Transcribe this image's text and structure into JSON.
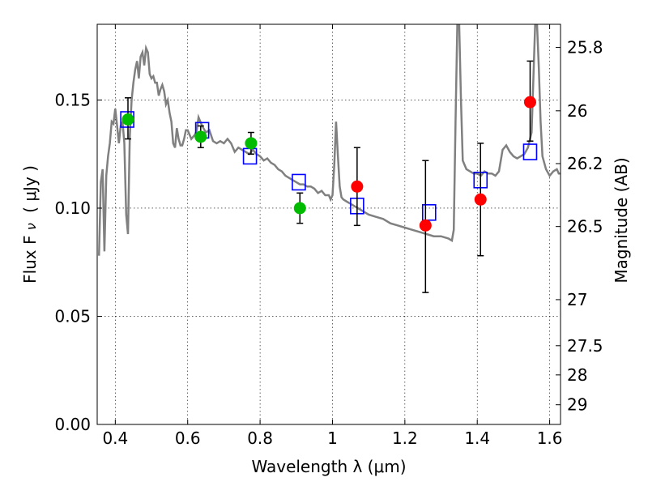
{
  "chart_data": {
    "type": "scatter",
    "xlabel": "Wavelength  λ (μm)",
    "ylabel_main": "Flux  F",
    "ylabel_sub": "ν",
    "ylabel_unit": "( μJy )",
    "y2label": "Magnitude (AB)",
    "xlim": [
      0.35,
      1.63
    ],
    "ylim": [
      0.0,
      0.185
    ],
    "grid": true,
    "x_ticks": [
      0.4,
      0.6,
      0.8,
      1.0,
      1.2,
      1.4,
      1.6
    ],
    "x_tick_labels": [
      "0.4",
      "0.6",
      "0.8",
      "1",
      "1.2",
      "1.4",
      "1.6"
    ],
    "y_ticks": [
      0.0,
      0.05,
      0.1,
      0.15
    ],
    "y_tick_labels": [
      "0.00",
      "0.05",
      "0.10",
      "0.15"
    ],
    "mag_ticks": [
      {
        "label": "25.8",
        "flux": 0.1743
      },
      {
        "label": "26",
        "flux": 0.145
      },
      {
        "label": "26.2",
        "flux": 0.1206
      },
      {
        "label": "26.5",
        "flux": 0.0915
      },
      {
        "label": "27",
        "flux": 0.0577
      },
      {
        "label": "27.5",
        "flux": 0.0364
      },
      {
        "label": "28",
        "flux": 0.0229
      },
      {
        "label": "29",
        "flux": 0.0091
      }
    ],
    "colors": {
      "sed": "#808080",
      "green_points": "#00bb00",
      "red_points": "#ff0000",
      "model_squares": "#0000ff",
      "errorbars": "#000000"
    },
    "sed_curve": [
      [
        0.355,
        0.078
      ],
      [
        0.36,
        0.112
      ],
      [
        0.365,
        0.118
      ],
      [
        0.37,
        0.08
      ],
      [
        0.375,
        0.115
      ],
      [
        0.38,
        0.124
      ],
      [
        0.385,
        0.13
      ],
      [
        0.39,
        0.14
      ],
      [
        0.395,
        0.139
      ],
      [
        0.4,
        0.146
      ],
      [
        0.405,
        0.138
      ],
      [
        0.41,
        0.13
      ],
      [
        0.415,
        0.138
      ],
      [
        0.42,
        0.14
      ],
      [
        0.425,
        0.13
      ],
      [
        0.43,
        0.097
      ],
      [
        0.435,
        0.088
      ],
      [
        0.44,
        0.133
      ],
      [
        0.445,
        0.15
      ],
      [
        0.45,
        0.158
      ],
      [
        0.455,
        0.164
      ],
      [
        0.46,
        0.168
      ],
      [
        0.465,
        0.16
      ],
      [
        0.47,
        0.17
      ],
      [
        0.475,
        0.172
      ],
      [
        0.48,
        0.166
      ],
      [
        0.485,
        0.174
      ],
      [
        0.49,
        0.172
      ],
      [
        0.495,
        0.162
      ],
      [
        0.5,
        0.16
      ],
      [
        0.505,
        0.161
      ],
      [
        0.51,
        0.158
      ],
      [
        0.515,
        0.158
      ],
      [
        0.52,
        0.152
      ],
      [
        0.525,
        0.155
      ],
      [
        0.53,
        0.157
      ],
      [
        0.535,
        0.154
      ],
      [
        0.54,
        0.148
      ],
      [
        0.545,
        0.15
      ],
      [
        0.55,
        0.144
      ],
      [
        0.555,
        0.14
      ],
      [
        0.56,
        0.13
      ],
      [
        0.565,
        0.128
      ],
      [
        0.57,
        0.137
      ],
      [
        0.575,
        0.132
      ],
      [
        0.58,
        0.129
      ],
      [
        0.585,
        0.129
      ],
      [
        0.59,
        0.132
      ],
      [
        0.595,
        0.136
      ],
      [
        0.6,
        0.136
      ],
      [
        0.605,
        0.134
      ],
      [
        0.61,
        0.132
      ],
      [
        0.615,
        0.133
      ],
      [
        0.62,
        0.134
      ],
      [
        0.625,
        0.136
      ],
      [
        0.63,
        0.142
      ],
      [
        0.64,
        0.138
      ],
      [
        0.65,
        0.135
      ],
      [
        0.66,
        0.136
      ],
      [
        0.67,
        0.131
      ],
      [
        0.68,
        0.13
      ],
      [
        0.69,
        0.131
      ],
      [
        0.7,
        0.13
      ],
      [
        0.71,
        0.132
      ],
      [
        0.72,
        0.13
      ],
      [
        0.73,
        0.126
      ],
      [
        0.74,
        0.128
      ],
      [
        0.75,
        0.127
      ],
      [
        0.76,
        0.126
      ],
      [
        0.77,
        0.125
      ],
      [
        0.78,
        0.127
      ],
      [
        0.79,
        0.125
      ],
      [
        0.8,
        0.124
      ],
      [
        0.81,
        0.122
      ],
      [
        0.82,
        0.123
      ],
      [
        0.83,
        0.121
      ],
      [
        0.84,
        0.12
      ],
      [
        0.85,
        0.118
      ],
      [
        0.86,
        0.117
      ],
      [
        0.87,
        0.115
      ],
      [
        0.88,
        0.114
      ],
      [
        0.89,
        0.113
      ],
      [
        0.9,
        0.112
      ],
      [
        0.91,
        0.111
      ],
      [
        0.92,
        0.111
      ],
      [
        0.93,
        0.11
      ],
      [
        0.94,
        0.11
      ],
      [
        0.95,
        0.109
      ],
      [
        0.96,
        0.107
      ],
      [
        0.97,
        0.108
      ],
      [
        0.98,
        0.106
      ],
      [
        0.99,
        0.106
      ],
      [
        0.995,
        0.104
      ],
      [
        1.0,
        0.106
      ],
      [
        1.005,
        0.12
      ],
      [
        1.01,
        0.14
      ],
      [
        1.015,
        0.124
      ],
      [
        1.02,
        0.11
      ],
      [
        1.025,
        0.105
      ],
      [
        1.03,
        0.104
      ],
      [
        1.04,
        0.103
      ],
      [
        1.05,
        0.102
      ],
      [
        1.06,
        0.101
      ],
      [
        1.07,
        0.1
      ],
      [
        1.08,
        0.099
      ],
      [
        1.09,
        0.098
      ],
      [
        1.1,
        0.097
      ],
      [
        1.12,
        0.096
      ],
      [
        1.14,
        0.095
      ],
      [
        1.16,
        0.093
      ],
      [
        1.18,
        0.092
      ],
      [
        1.2,
        0.091
      ],
      [
        1.22,
        0.09
      ],
      [
        1.24,
        0.089
      ],
      [
        1.26,
        0.088
      ],
      [
        1.28,
        0.087
      ],
      [
        1.3,
        0.087
      ],
      [
        1.32,
        0.086
      ],
      [
        1.33,
        0.085
      ],
      [
        1.335,
        0.09
      ],
      [
        1.34,
        0.14
      ],
      [
        1.345,
        0.185
      ],
      [
        1.35,
        0.185
      ],
      [
        1.355,
        0.15
      ],
      [
        1.36,
        0.122
      ],
      [
        1.37,
        0.118
      ],
      [
        1.38,
        0.117
      ],
      [
        1.39,
        0.116
      ],
      [
        1.4,
        0.116
      ],
      [
        1.41,
        0.115
      ],
      [
        1.42,
        0.117
      ],
      [
        1.43,
        0.116
      ],
      [
        1.44,
        0.116
      ],
      [
        1.45,
        0.115
      ],
      [
        1.46,
        0.117
      ],
      [
        1.47,
        0.127
      ],
      [
        1.48,
        0.129
      ],
      [
        1.49,
        0.126
      ],
      [
        1.5,
        0.124
      ],
      [
        1.51,
        0.123
      ],
      [
        1.52,
        0.124
      ],
      [
        1.53,
        0.125
      ],
      [
        1.54,
        0.128
      ],
      [
        1.55,
        0.135
      ],
      [
        1.555,
        0.16
      ],
      [
        1.56,
        0.185
      ],
      [
        1.565,
        0.185
      ],
      [
        1.57,
        0.165
      ],
      [
        1.575,
        0.14
      ],
      [
        1.58,
        0.124
      ],
      [
        1.59,
        0.118
      ],
      [
        1.6,
        0.115
      ],
      [
        1.61,
        0.117
      ],
      [
        1.62,
        0.118
      ],
      [
        1.625,
        0.116
      ],
      [
        1.63,
        0.116
      ]
    ],
    "observed_green": [
      {
        "x": 0.435,
        "y": 0.141,
        "yerr_lo": 0.132,
        "yerr_hi": 0.151
      },
      {
        "x": 0.636,
        "y": 0.133,
        "yerr_lo": 0.128,
        "yerr_hi": 0.138
      },
      {
        "x": 0.775,
        "y": 0.13,
        "yerr_lo": 0.125,
        "yerr_hi": 0.135
      },
      {
        "x": 0.91,
        "y": 0.1,
        "yerr_lo": 0.093,
        "yerr_hi": 0.107
      }
    ],
    "observed_red": [
      {
        "x": 1.068,
        "y": 0.11,
        "yerr_lo": 0.092,
        "yerr_hi": 0.128
      },
      {
        "x": 1.257,
        "y": 0.092,
        "yerr_lo": 0.061,
        "yerr_hi": 0.122
      },
      {
        "x": 1.409,
        "y": 0.104,
        "yerr_lo": 0.078,
        "yerr_hi": 0.13
      },
      {
        "x": 1.546,
        "y": 0.149,
        "yerr_lo": 0.131,
        "yerr_hi": 0.168
      }
    ],
    "model_squares": [
      {
        "x": 0.433,
        "y": 0.141
      },
      {
        "x": 0.64,
        "y": 0.136
      },
      {
        "x": 0.772,
        "y": 0.124
      },
      {
        "x": 0.907,
        "y": 0.112
      },
      {
        "x": 1.068,
        "y": 0.101
      },
      {
        "x": 1.267,
        "y": 0.098
      },
      {
        "x": 1.409,
        "y": 0.113
      },
      {
        "x": 1.546,
        "y": 0.126
      }
    ]
  }
}
